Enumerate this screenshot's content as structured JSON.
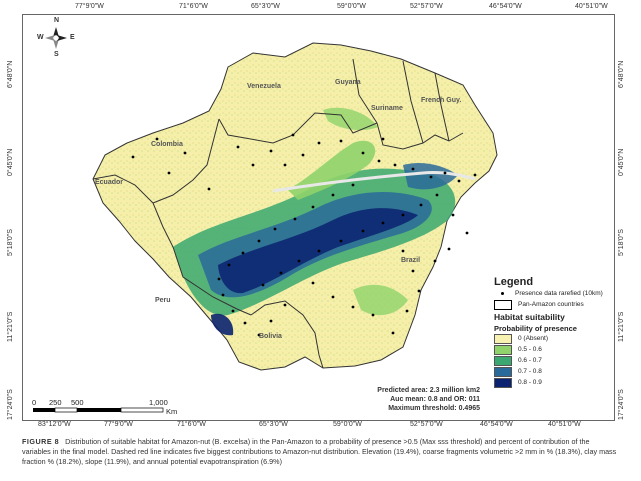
{
  "top_ticks": [
    "77°9'0\"W",
    "71°6'0\"W",
    "65°3'0\"W",
    "59°0'0\"W",
    "52°57'0\"W",
    "46°54'0\"W",
    "40°51'0\"W"
  ],
  "bottom_ticks": [
    "83°12'0\"W",
    "77°9'0\"W",
    "71°6'0\"W",
    "65°3'0\"W",
    "59°0'0\"W",
    "52°57'0\"W",
    "46°54'0\"W",
    "40°51'0\"W"
  ],
  "left_ticks": [
    "6°48'0\"N",
    "0°45'0\"N",
    "5°18'0\"S",
    "11°21'0\"S",
    "17°24'0\"S"
  ],
  "right_ticks": [
    "6°48'0\"N",
    "0°45'0\"N",
    "5°18'0\"S",
    "11°21'0\"S",
    "17°24'0\"S"
  ],
  "countries": {
    "venezuela": "Venezuela",
    "guyana": "Guyana",
    "suriname": "Suriname",
    "french_guy": "French Guy.",
    "colombia": "Colombia",
    "ecuador": "Ecuador",
    "peru": "Peru",
    "brazil": "Brazil",
    "bolivia": "Bolivia"
  },
  "legend": {
    "title": "Legend",
    "presence": "Presence data rarefied (10km)",
    "countries": "Pan-Amazon countries",
    "habitat": "Habitat suitability",
    "probability": "Probability of presence",
    "classes": [
      {
        "label": "0 (Absent)",
        "color": "#f7f2b0"
      },
      {
        "label": "0.5 - 0.6",
        "color": "#8fd36a"
      },
      {
        "label": "0.6 - 0.7",
        "color": "#3aa870"
      },
      {
        "label": "0.7 - 0.8",
        "color": "#2a6a9a"
      },
      {
        "label": "0.8 - 0.9",
        "color": "#0b2270"
      }
    ]
  },
  "stats": {
    "area": "Predicted area: 2.3 million km2",
    "auc": "Auc mean: 0.8 and OR: 011",
    "threshold": "Maximum threshold: 0.4965"
  },
  "scale": {
    "labels": [
      "0",
      "250",
      "500",
      "1,000"
    ],
    "unit": "Km"
  },
  "north_arrow": {
    "n": "N",
    "s": "S",
    "e": "E",
    "w": "W"
  },
  "caption": {
    "figure": "FIGURE 8",
    "text": "Distribution of suitable habitat for Amazon-nut (B. excelsa) in the Pan-Amazon to a probability of presence >0.5 (Max sss threshold) and percent of contribution of the variables in the final model. Dashed red line indicates five biggest contributions to Amazon-nut distribution. Elevation (19.4%), coarse fragments volumetric >2 mm in % (18.3%), clay mass fraction % (18.2%), slope (11.9%), and annual potential evapotranspiration (6.9%)"
  }
}
